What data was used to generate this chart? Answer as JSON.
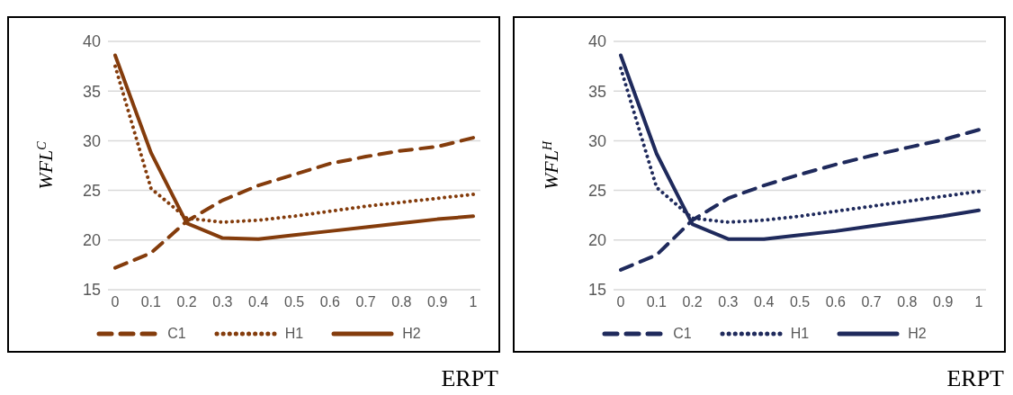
{
  "chart_data": [
    {
      "type": "line",
      "ylabel": "WFL$^{C}$",
      "xlabel": "ERPT",
      "categories": [
        "0",
        "0.1",
        "0.2",
        "0.3",
        "0.4",
        "0.5",
        "0.6",
        "0.7",
        "0.8",
        "0.9",
        "1"
      ],
      "ylim": [
        15,
        40
      ],
      "yticks": [
        15,
        20,
        25,
        30,
        35,
        40
      ],
      "grid": "y",
      "legend": "bottom",
      "marker": "none",
      "series": [
        {
          "name": "C1",
          "color": "#843c0c",
          "line_style": "dashed",
          "values": [
            17.2,
            18.7,
            21.9,
            24.0,
            25.5,
            26.6,
            27.7,
            28.4,
            29.0,
            29.4,
            30.3
          ]
        },
        {
          "name": "H1",
          "color": "#843c0c",
          "line_style": "dotted",
          "values": [
            37.5,
            25.2,
            22.2,
            21.8,
            22.0,
            22.4,
            22.9,
            23.4,
            23.8,
            24.2,
            24.6
          ]
        },
        {
          "name": "H2",
          "color": "#843c0c",
          "line_style": "solid",
          "values": [
            38.6,
            28.8,
            21.7,
            20.2,
            20.1,
            20.5,
            20.9,
            21.3,
            21.7,
            22.1,
            22.4
          ]
        }
      ]
    },
    {
      "type": "line",
      "ylabel": "WFL$^{H}$",
      "xlabel": "ERPT",
      "categories": [
        "0",
        "0.1",
        "0.2",
        "0.3",
        "0.4",
        "0.5",
        "0.6",
        "0.7",
        "0.8",
        "0.9",
        "1"
      ],
      "ylim": [
        15,
        40
      ],
      "yticks": [
        15,
        20,
        25,
        30,
        35,
        40
      ],
      "grid": "y",
      "legend": "bottom",
      "marker": "none",
      "series": [
        {
          "name": "C1",
          "color": "#1f2a5c",
          "line_style": "dashed",
          "values": [
            17.0,
            18.5,
            22.0,
            24.2,
            25.5,
            26.6,
            27.6,
            28.5,
            29.3,
            30.1,
            31.1
          ]
        },
        {
          "name": "H1",
          "color": "#1f2a5c",
          "line_style": "dotted",
          "values": [
            37.3,
            25.3,
            22.2,
            21.8,
            22.0,
            22.4,
            22.9,
            23.4,
            23.9,
            24.4,
            24.9
          ]
        },
        {
          "name": "H2",
          "color": "#1f2a5c",
          "line_style": "solid",
          "values": [
            38.6,
            28.7,
            21.6,
            20.1,
            20.1,
            20.5,
            20.9,
            21.4,
            21.9,
            22.4,
            23.0
          ]
        }
      ]
    }
  ]
}
